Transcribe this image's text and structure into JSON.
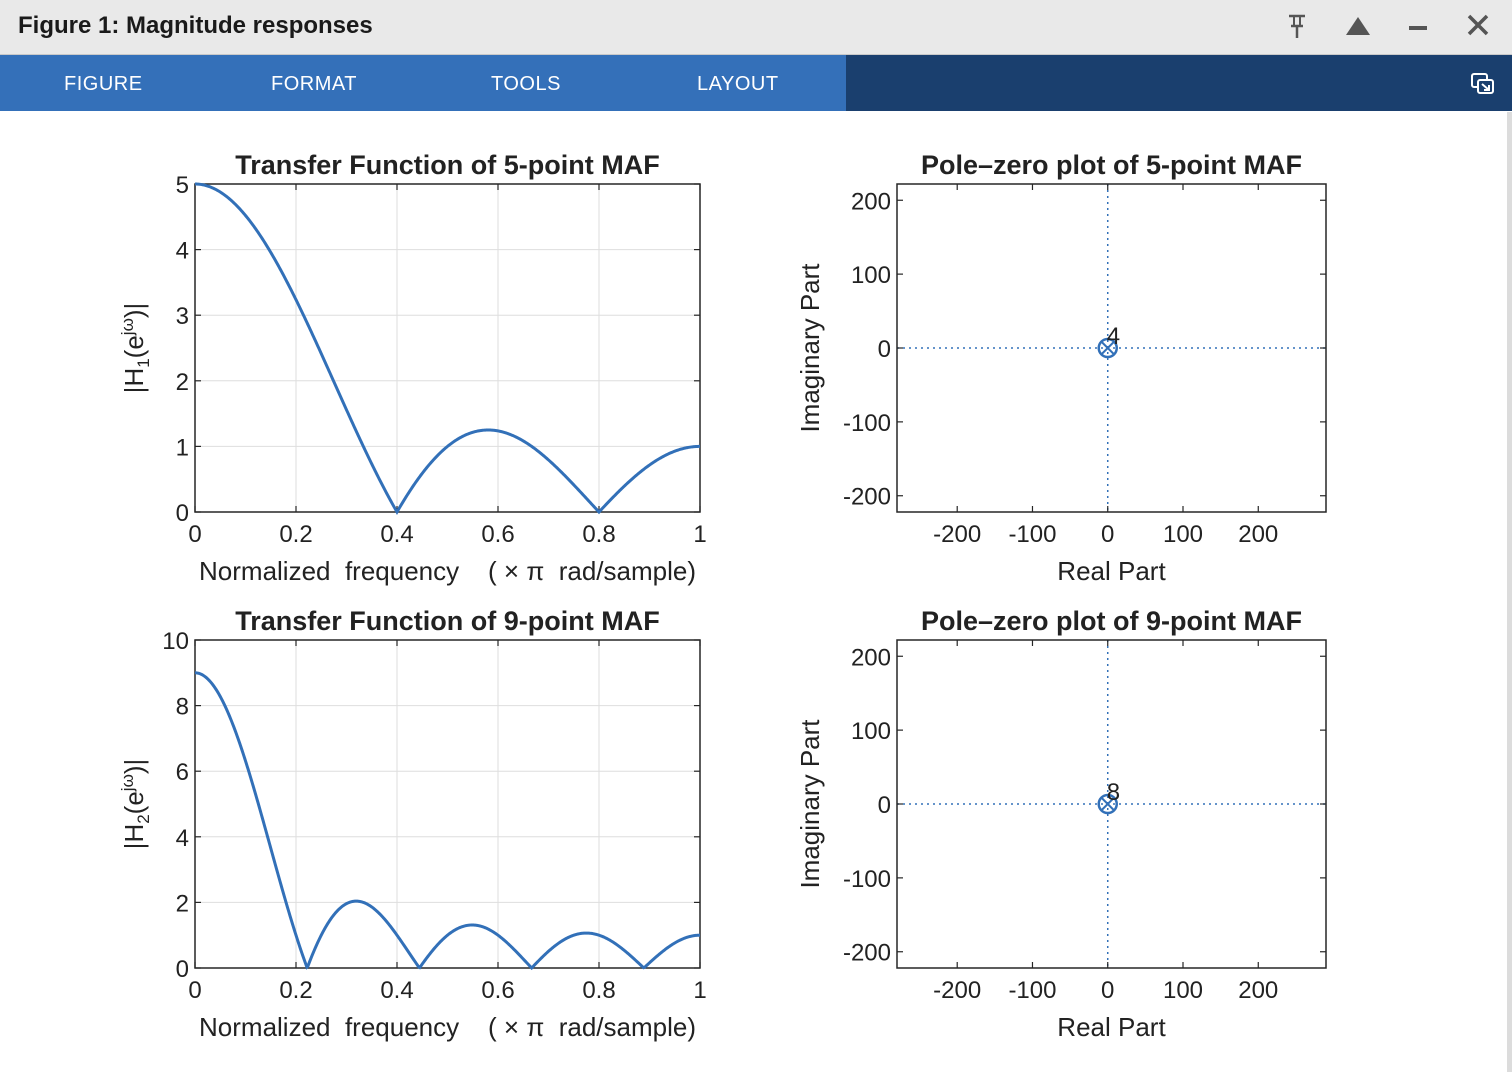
{
  "window": {
    "title": "Figure 1: Magnitude responses",
    "controls": [
      "pin-icon",
      "expand-icon",
      "minimize-icon",
      "close-icon"
    ]
  },
  "toolbar": {
    "tabs": [
      "FIGURE",
      "FORMAT",
      "TOOLS",
      "LAYOUT"
    ]
  },
  "colors": {
    "line": "#3270b8",
    "tab_bg": "#3470b9",
    "toolbar_bg": "#1a3f6e"
  },
  "chart_data": [
    {
      "type": "line",
      "title": "Transfer Function of 5-point MAF",
      "xlabel": "Normalized  frequency    ( × π  rad/sample)",
      "ylabel": "|H1(ejω)|",
      "xlim": [
        0,
        1
      ],
      "ylim": [
        0,
        5
      ],
      "xticks": [
        "0",
        "0.2",
        "0.4",
        "0.6",
        "0.8",
        "1"
      ],
      "yticks": [
        "0",
        "1",
        "2",
        "3",
        "4",
        "5"
      ],
      "grid": true,
      "series": [
        {
          "N": 5,
          "x": [
            0,
            0.1,
            0.2,
            0.3,
            0.4,
            0.5,
            0.58,
            0.7,
            0.8,
            0.9,
            1
          ],
          "values": [
            5,
            4.24,
            3.24,
            1.62,
            0,
            1,
            1.24,
            0.62,
            0,
            0.62,
            1
          ]
        }
      ]
    },
    {
      "type": "scatter",
      "title": "Pole–zero plot of 5-point MAF",
      "xlabel": "Real Part",
      "ylabel": "Imaginary Part",
      "xlim": [
        -280,
        290
      ],
      "ylim": [
        -222,
        222
      ],
      "xticks": [
        "-200",
        "-100",
        "0",
        "100",
        "200"
      ],
      "yticks": [
        "-200",
        "-100",
        "0",
        "100",
        "200"
      ],
      "points": [
        {
          "x": 0,
          "y": 0,
          "marker": "zero-and-pole",
          "multiplicity_label": "4"
        }
      ]
    },
    {
      "type": "line",
      "title": "Transfer Function of 9-point MAF",
      "xlabel": "Normalized  frequency    ( × π  rad/sample)",
      "ylabel": "|H2(ejω)|",
      "xlim": [
        0,
        1
      ],
      "ylim": [
        0,
        10
      ],
      "xticks": [
        "0",
        "0.2",
        "0.4",
        "0.6",
        "0.8",
        "1"
      ],
      "yticks": [
        "0",
        "2",
        "4",
        "6",
        "8",
        "10"
      ],
      "grid": true,
      "series": [
        {
          "N": 9,
          "x": [
            0,
            0.1,
            0.222,
            0.32,
            0.444,
            0.55,
            0.667,
            0.78,
            0.889,
            1
          ],
          "values": [
            9,
            6.4,
            0,
            2.05,
            0,
            1.3,
            0,
            1.05,
            0,
            1
          ]
        }
      ]
    },
    {
      "type": "scatter",
      "title": "Pole–zero plot of 9-point MAF",
      "xlabel": "Real Part",
      "ylabel": "Imaginary Part",
      "xlim": [
        -280,
        290
      ],
      "ylim": [
        -222,
        222
      ],
      "xticks": [
        "-200",
        "-100",
        "0",
        "100",
        "200"
      ],
      "yticks": [
        "-200",
        "-100",
        "0",
        "100",
        "200"
      ],
      "points": [
        {
          "x": 0,
          "y": 0,
          "marker": "zero-and-pole",
          "multiplicity_label": "8"
        }
      ]
    }
  ]
}
